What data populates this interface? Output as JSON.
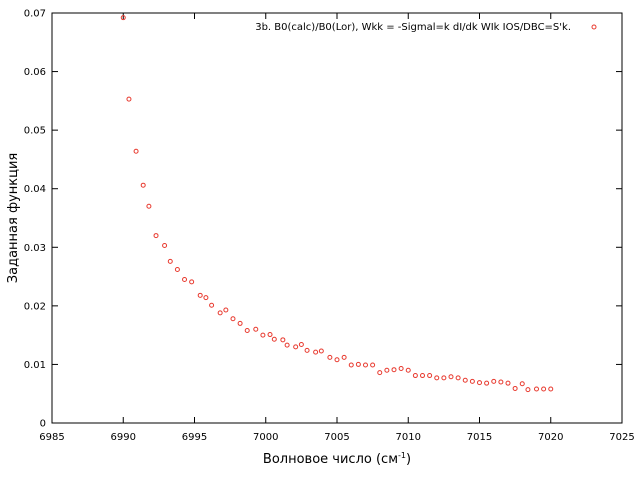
{
  "chart_data": {
    "type": "scatter",
    "xlabel": "Волновое число (см",
    "xlabel_sup": "-1",
    "xlabel_end": ")",
    "ylabel": "Заданная функция",
    "xlim": [
      6985,
      7025
    ],
    "ylim": [
      0,
      0.07
    ],
    "xticks": [
      "6985",
      "6990",
      "6995",
      "7000",
      "7005",
      "7010",
      "7015",
      "7020",
      "7025"
    ],
    "yticks": [
      "0",
      "0.01",
      "0.02",
      "0.03",
      "0.04",
      "0.05",
      "0.06",
      "0.07"
    ],
    "grid": false,
    "legend_position": "top-right",
    "series": [
      {
        "name": "3b. B0(calc)/B0(Lor), Wkk = -Sigmal=k dI/dk WIk IOS/DBC=S'k.",
        "color": "#e8392e",
        "marker": "open-circle",
        "x": [
          6990.0,
          6990.4,
          6990.9,
          6991.4,
          6991.8,
          6992.3,
          6992.9,
          6993.3,
          6993.8,
          6994.3,
          6994.8,
          6995.4,
          6995.8,
          6996.2,
          6996.8,
          6997.2,
          6997.7,
          6998.2,
          6998.7,
          6999.3,
          6999.8,
          7000.3,
          7000.6,
          7001.2,
          7001.5,
          7002.1,
          7002.5,
          7002.9,
          7003.5,
          7003.9,
          7004.5,
          7005.0,
          7005.5,
          7006.0,
          7006.5,
          7007.0,
          7007.5,
          7008.0,
          7008.5,
          7009.0,
          7009.5,
          7010.0,
          7010.5,
          7011.0,
          7011.5,
          7012.0,
          7012.5,
          7013.0,
          7013.5,
          7014.0,
          7014.5,
          7015.0,
          7015.5,
          7016.0,
          7016.5,
          7017.0,
          7017.5,
          7018.0,
          7018.4,
          7019.0,
          7019.5,
          7020.0
        ],
        "y": [
          0.0692,
          0.0553,
          0.0464,
          0.0406,
          0.037,
          0.032,
          0.0303,
          0.0276,
          0.0262,
          0.0245,
          0.0241,
          0.0218,
          0.0214,
          0.0201,
          0.0188,
          0.0193,
          0.0178,
          0.017,
          0.0158,
          0.016,
          0.015,
          0.0151,
          0.0143,
          0.0142,
          0.0133,
          0.013,
          0.0134,
          0.0124,
          0.0121,
          0.0123,
          0.0112,
          0.0108,
          0.0112,
          0.0099,
          0.01,
          0.0099,
          0.0099,
          0.0086,
          0.009,
          0.0091,
          0.0093,
          0.009,
          0.0081,
          0.0081,
          0.0081,
          0.0077,
          0.0077,
          0.0079,
          0.0077,
          0.0073,
          0.0071,
          0.0069,
          0.0068,
          0.0071,
          0.007,
          0.0068,
          0.0059,
          0.0067,
          0.0057,
          0.0058,
          0.0058,
          0.0058
        ]
      }
    ]
  }
}
